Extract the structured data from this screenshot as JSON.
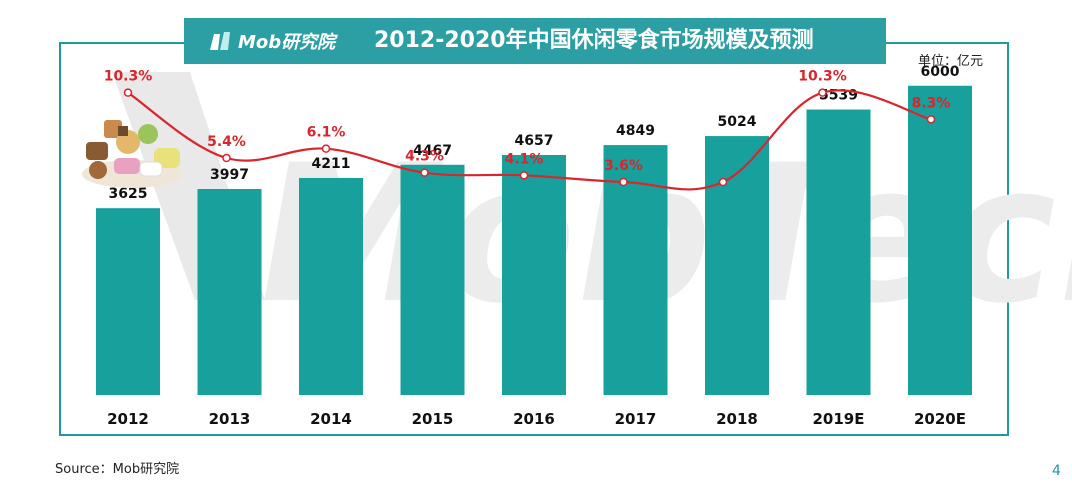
{
  "header": {
    "logo_text": "Mob研究院",
    "title": "2012-2020年中国休闲零食市场规模及预测"
  },
  "unit_label": "单位：亿元",
  "source": "Source：Mob研究院",
  "page_number": "4",
  "watermark": "MobTech",
  "colors": {
    "bar": "#17a09c",
    "line": "#d9262e",
    "title_bg": "#2b9fa3",
    "frame": "#1e9aa0"
  },
  "chart_data": {
    "type": "bar",
    "title": "2012-2020年中国休闲零食市场规模及预测",
    "categories": [
      "2012",
      "2013",
      "2014",
      "2015",
      "2016",
      "2017",
      "2018",
      "2019E",
      "2020E"
    ],
    "series": [
      {
        "type": "bar",
        "values": [
          3625,
          3997,
          4211,
          4467,
          4657,
          4849,
          5024,
          5539,
          6000
        ],
        "labels": [
          "3625",
          "3997",
          "4211",
          "4467",
          "4657",
          "4849",
          "5024",
          "5539",
          "6000"
        ]
      },
      {
        "type": "line",
        "values": [
          10.3,
          5.4,
          6.1,
          4.3,
          4.1,
          3.6,
          3.6,
          10.3,
          8.3
        ],
        "labels": [
          "10.3%",
          "5.4%",
          "6.1%",
          "4.3%",
          "4.1%",
          "3.6%",
          "",
          "10.3%",
          "8.3%"
        ]
      }
    ],
    "ylim": [
      0,
      6500
    ],
    "line_ylim": [
      0,
      12
    ],
    "grid": false,
    "legend": "none"
  }
}
